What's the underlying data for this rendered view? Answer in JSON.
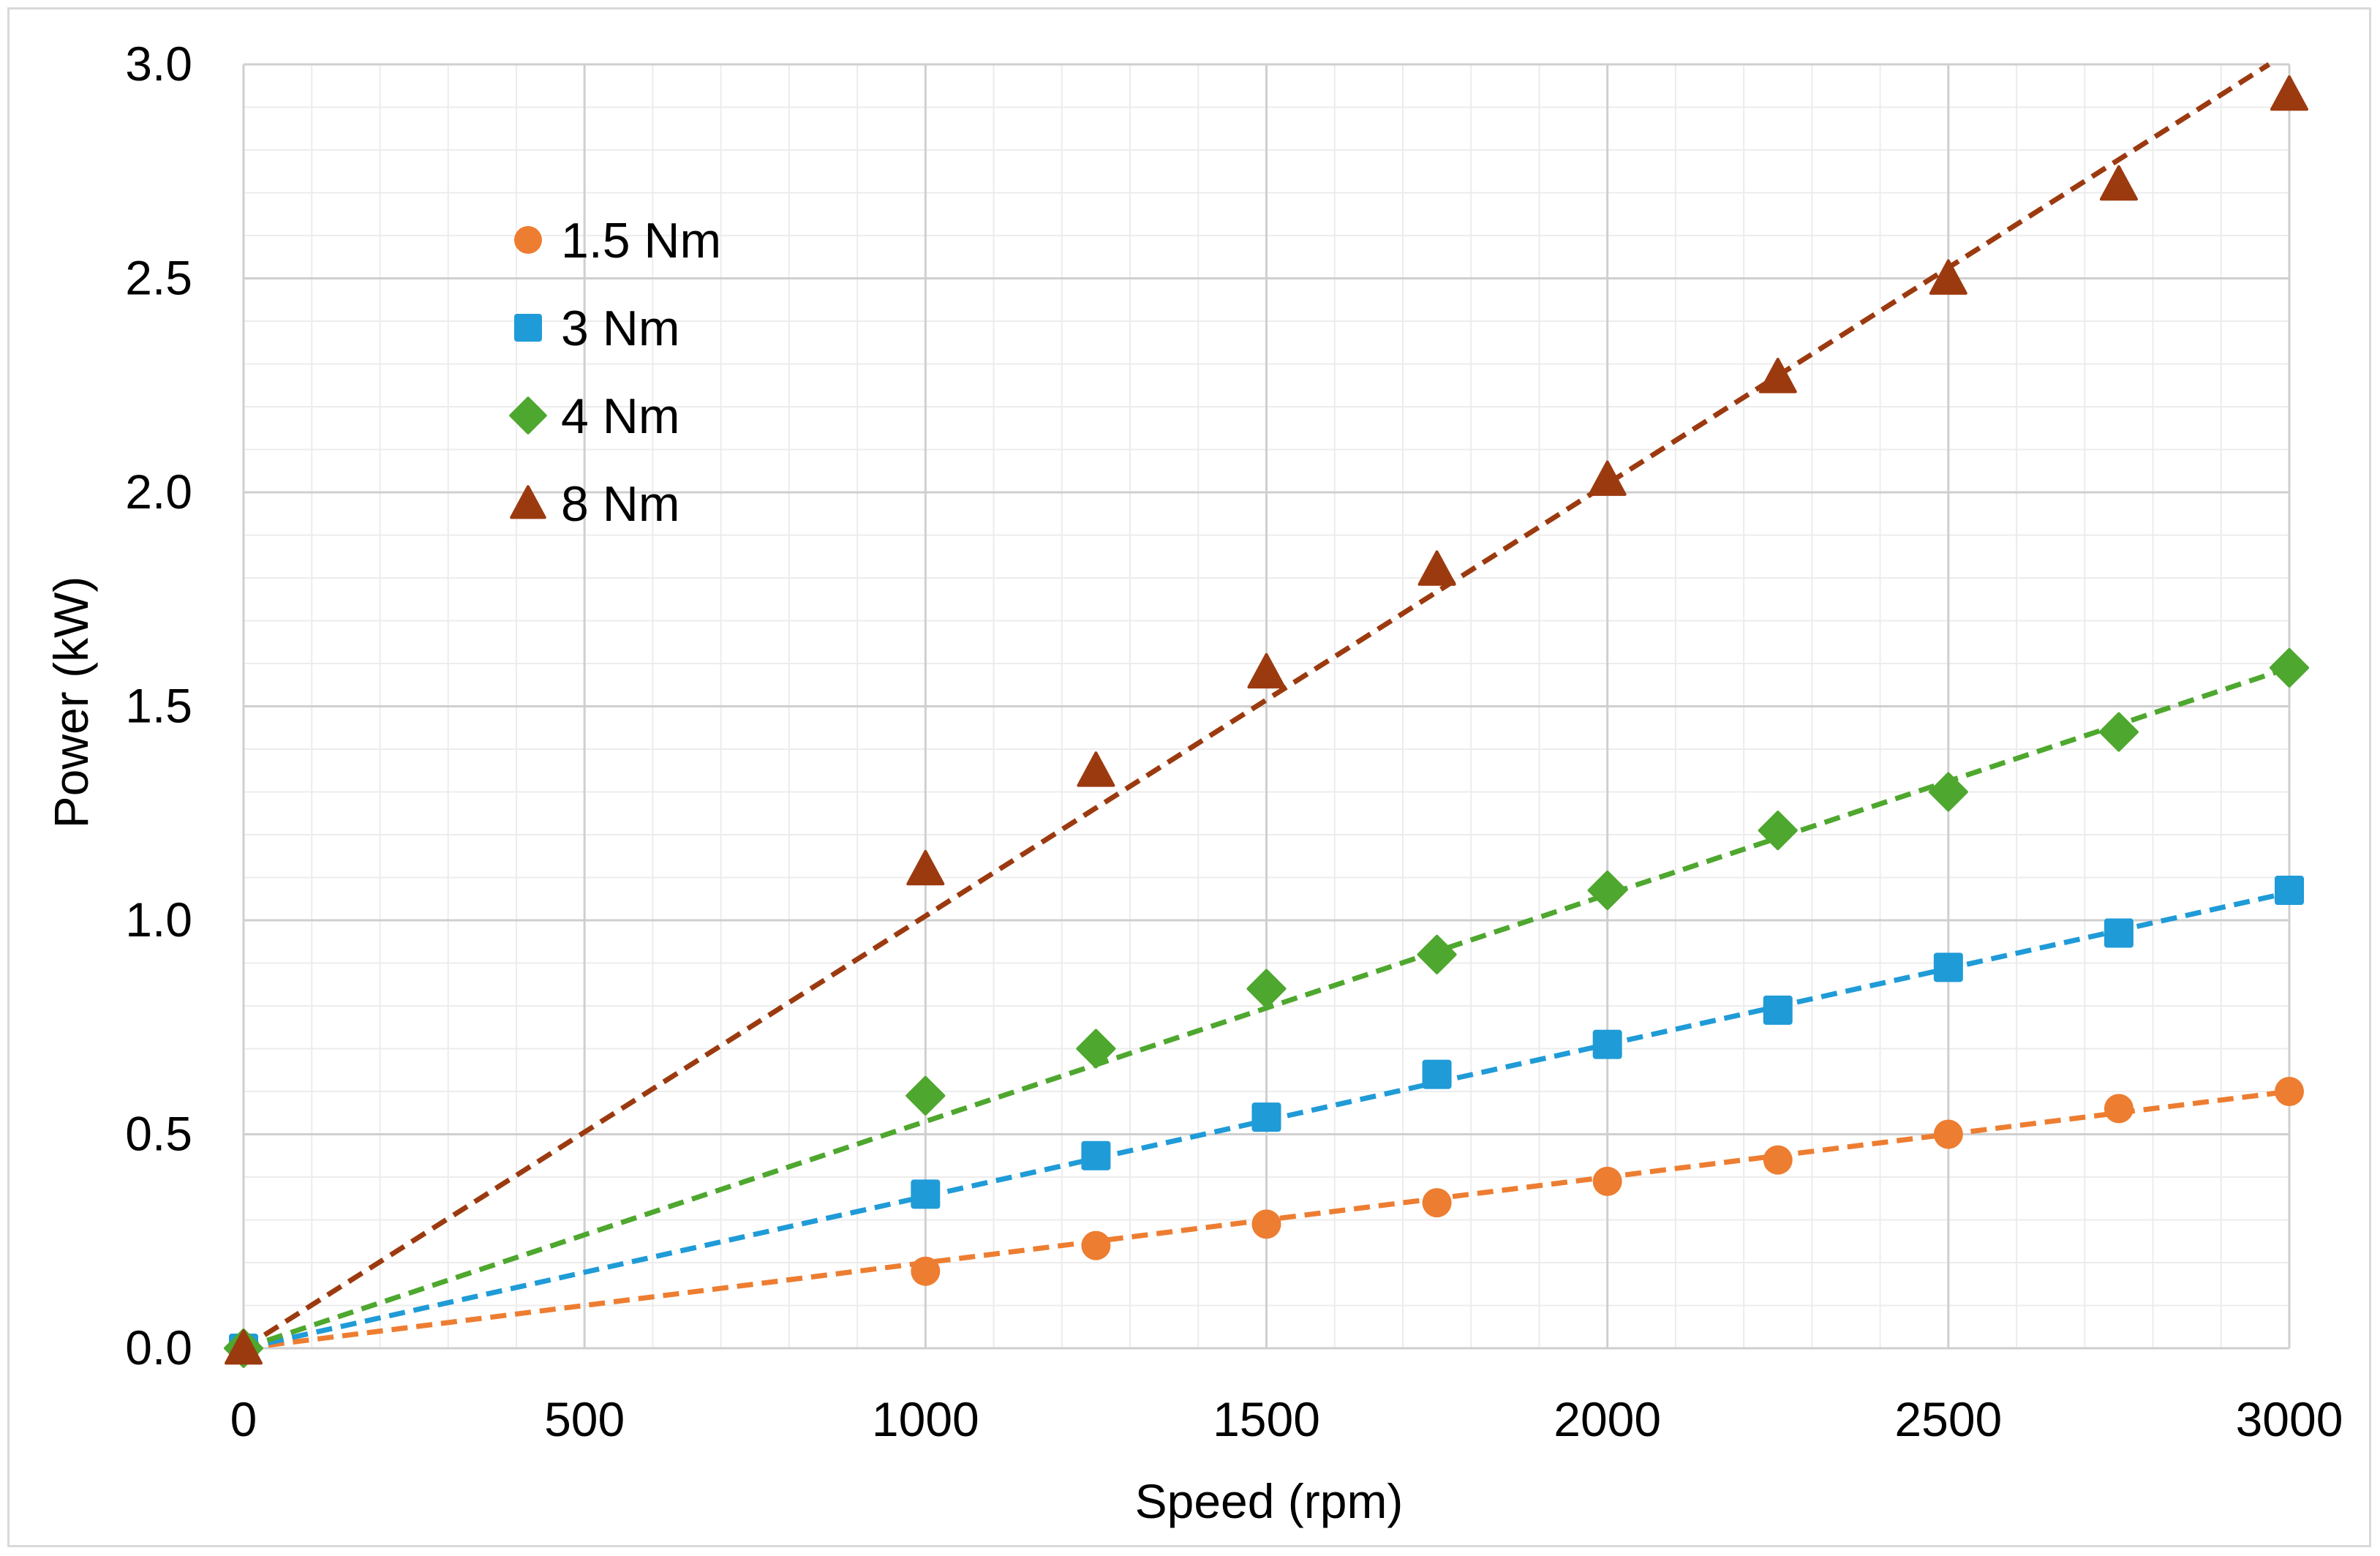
{
  "chart_data": {
    "type": "scatter",
    "title": "",
    "xlabel": "Speed (rpm)",
    "ylabel": "Power (kW)",
    "xlim": [
      0,
      3000
    ],
    "ylim": [
      0,
      3.0
    ],
    "x_ticks": [
      "0",
      "500",
      "1000",
      "1500",
      "2000",
      "2500",
      "3000"
    ],
    "y_ticks": [
      "0.0",
      "0.5",
      "1.0",
      "1.5",
      "2.0",
      "2.5",
      "3.0"
    ],
    "grid": true,
    "legend_position": "top-left",
    "trendlines": "linear, dashed, through origin",
    "series": [
      {
        "name": "1.5 Nm",
        "color": "#ed7d31",
        "marker": "circle",
        "x": [
          0,
          1000,
          1250,
          1500,
          1750,
          2000,
          2250,
          2500,
          2750,
          3000
        ],
        "y": [
          0.0,
          0.18,
          0.24,
          0.29,
          0.34,
          0.39,
          0.44,
          0.5,
          0.56,
          0.6
        ],
        "trend_slope": 0.0002
      },
      {
        "name": "3 Nm",
        "color": "#1f9bd7",
        "marker": "square",
        "x": [
          0,
          1000,
          1250,
          1500,
          1750,
          2000,
          2250,
          2500,
          2750,
          3000
        ],
        "y": [
          0.0,
          0.36,
          0.45,
          0.54,
          0.64,
          0.71,
          0.79,
          0.89,
          0.97,
          1.07
        ],
        "trend_slope": 0.000355
      },
      {
        "name": "4 Nm",
        "color": "#4ea72e",
        "marker": "diamond",
        "x": [
          0,
          1000,
          1250,
          1500,
          1750,
          2000,
          2250,
          2500,
          2750,
          3000
        ],
        "y": [
          0.0,
          0.59,
          0.7,
          0.84,
          0.92,
          1.07,
          1.21,
          1.3,
          1.44,
          1.59
        ],
        "trend_slope": 0.00053
      },
      {
        "name": "8 Nm",
        "color": "#9c3a0f",
        "marker": "triangle",
        "x": [
          0,
          1000,
          1250,
          1500,
          1750,
          2000,
          2250,
          2500,
          2750,
          3000
        ],
        "y": [
          0.0,
          1.12,
          1.35,
          1.58,
          1.82,
          2.03,
          2.27,
          2.5,
          2.72,
          2.93
        ],
        "trend_slope": 0.00101
      }
    ]
  }
}
